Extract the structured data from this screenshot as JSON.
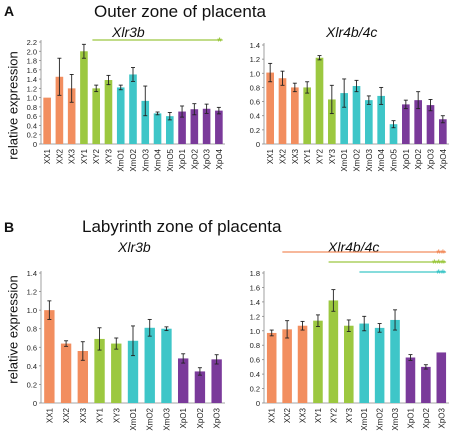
{
  "labels": {
    "panel_a": "A",
    "panel_b": "B",
    "title_a": "Outer zone of placenta",
    "title_b": "Labyrinth zone of placenta",
    "ylabel": "relative expression"
  },
  "colors": {
    "XX": "#f28e5f",
    "XY": "#9cc840",
    "Xm": "#3ec6c8",
    "Xp": "#7a3a9a"
  },
  "chart_data": [
    {
      "type": "bar",
      "panel": "A",
      "title": "Xlr3b",
      "ylabel": "relative expression",
      "ylim": [
        0,
        2.2
      ],
      "yticks": [
        "0",
        "0.2",
        "0.4",
        "0.6",
        "0.8",
        "1.0",
        "1.2",
        "1.4",
        "1.6",
        "1.8",
        "2.0",
        "2.2"
      ],
      "categories": [
        "XX1",
        "XX2",
        "XX3",
        "XY1",
        "XY2",
        "XY3",
        "XmO1",
        "XmO2",
        "XmO3",
        "XmO4",
        "XmO5",
        "XpO1",
        "XpO2",
        "XpO3",
        "XpO4"
      ],
      "groups": [
        "XX",
        "XX",
        "XX",
        "XY",
        "XY",
        "XY",
        "Xm",
        "Xm",
        "Xm",
        "Xm",
        "Xm",
        "Xp",
        "Xp",
        "Xp",
        "Xp"
      ],
      "values": [
        1.0,
        1.45,
        1.2,
        2.0,
        1.2,
        1.38,
        1.22,
        1.5,
        0.93,
        0.66,
        0.6,
        0.7,
        0.75,
        0.76,
        0.72
      ],
      "errors": [
        0.0,
        0.4,
        0.3,
        0.15,
        0.07,
        0.1,
        0.05,
        0.15,
        0.32,
        0.03,
        0.08,
        0.12,
        0.12,
        0.1,
        0.07
      ],
      "significance": [
        {
          "from": "XY2",
          "to": "XpO4",
          "color": "XY",
          "marks": "*"
        }
      ]
    },
    {
      "type": "bar",
      "panel": "A",
      "title": "Xlr4b/4c",
      "ylim": [
        0,
        1.4
      ],
      "yticks": [
        "0",
        "0.2",
        "0.4",
        "0.6",
        "0.8",
        "1.0",
        "1.2",
        "1.4"
      ],
      "categories": [
        "XX1",
        "XX2",
        "XX3",
        "XY1",
        "XY2",
        "XY3",
        "XmO1",
        "XmO2",
        "XmO3",
        "XmO4",
        "XmO5",
        "XpO1",
        "XpO2",
        "XpO3",
        "XpO4"
      ],
      "groups": [
        "XX",
        "XX",
        "XX",
        "XY",
        "XY",
        "XY",
        "Xm",
        "Xm",
        "Xm",
        "Xm",
        "Xm",
        "Xp",
        "Xp",
        "Xp",
        "Xp"
      ],
      "values": [
        1.01,
        0.93,
        0.8,
        0.8,
        1.22,
        0.63,
        0.72,
        0.82,
        0.62,
        0.68,
        0.28,
        0.56,
        0.62,
        0.55,
        0.35
      ],
      "errors": [
        0.13,
        0.1,
        0.06,
        0.08,
        0.03,
        0.2,
        0.2,
        0.08,
        0.06,
        0.12,
        0.05,
        0.06,
        0.12,
        0.08,
        0.05
      ],
      "significance": []
    },
    {
      "type": "bar",
      "panel": "B",
      "title": "Xlr3b",
      "ylabel": "relative expression",
      "ylim": [
        0,
        1.4
      ],
      "yticks": [
        "0",
        "0.2",
        "0.4",
        "0.6",
        "0.8",
        "1.0",
        "1.2",
        "1.4"
      ],
      "categories": [
        "XX1",
        "XX2",
        "XX3",
        "XY1",
        "XY3",
        "XmO1",
        "XmO2",
        "XmO3",
        "XpO1",
        "XpO2",
        "XpO3"
      ],
      "groups": [
        "XX",
        "XX",
        "XX",
        "XY",
        "XY",
        "Xm",
        "Xm",
        "Xm",
        "Xp",
        "Xp",
        "Xp"
      ],
      "values": [
        1.0,
        0.64,
        0.56,
        0.69,
        0.64,
        0.67,
        0.81,
        0.8,
        0.48,
        0.34,
        0.47
      ],
      "errors": [
        0.1,
        0.03,
        0.1,
        0.12,
        0.06,
        0.16,
        0.09,
        0.02,
        0.05,
        0.04,
        0.05
      ],
      "significance": []
    },
    {
      "type": "bar",
      "panel": "B",
      "title": "Xlr4b/4c",
      "ylim": [
        0,
        1.8
      ],
      "yticks": [
        "0",
        "0.2",
        "0.4",
        "0.6",
        "0.8",
        "1.0",
        "1.2",
        "1.4",
        "1.6",
        "1.8"
      ],
      "categories": [
        "XX1",
        "XX2",
        "XX3",
        "XY1",
        "XY2",
        "XY3",
        "XmO1",
        "XmO2",
        "XmO3",
        "XpO1",
        "XpO2",
        "XpO3"
      ],
      "groups": [
        "XX",
        "XX",
        "XX",
        "XY",
        "XY",
        "XY",
        "Xm",
        "Xm",
        "Xm",
        "Xp",
        "Xp",
        "Xp"
      ],
      "values": [
        0.97,
        1.02,
        1.07,
        1.14,
        1.42,
        1.07,
        1.1,
        1.04,
        1.15,
        0.63,
        0.5,
        0.7
      ],
      "errors": [
        0.04,
        0.12,
        0.06,
        0.08,
        0.15,
        0.08,
        0.1,
        0.06,
        0.14,
        0.04,
        0.03,
        0.0
      ],
      "significance": [
        {
          "from": "XX2",
          "to": "XpO3",
          "color": "XX",
          "marks": "**"
        },
        {
          "from": "XY2",
          "to": "XpO3",
          "color": "XY",
          "marks": "***"
        },
        {
          "from": "XmO1",
          "to": "XpO3",
          "color": "Xm",
          "marks": "**"
        }
      ]
    }
  ]
}
